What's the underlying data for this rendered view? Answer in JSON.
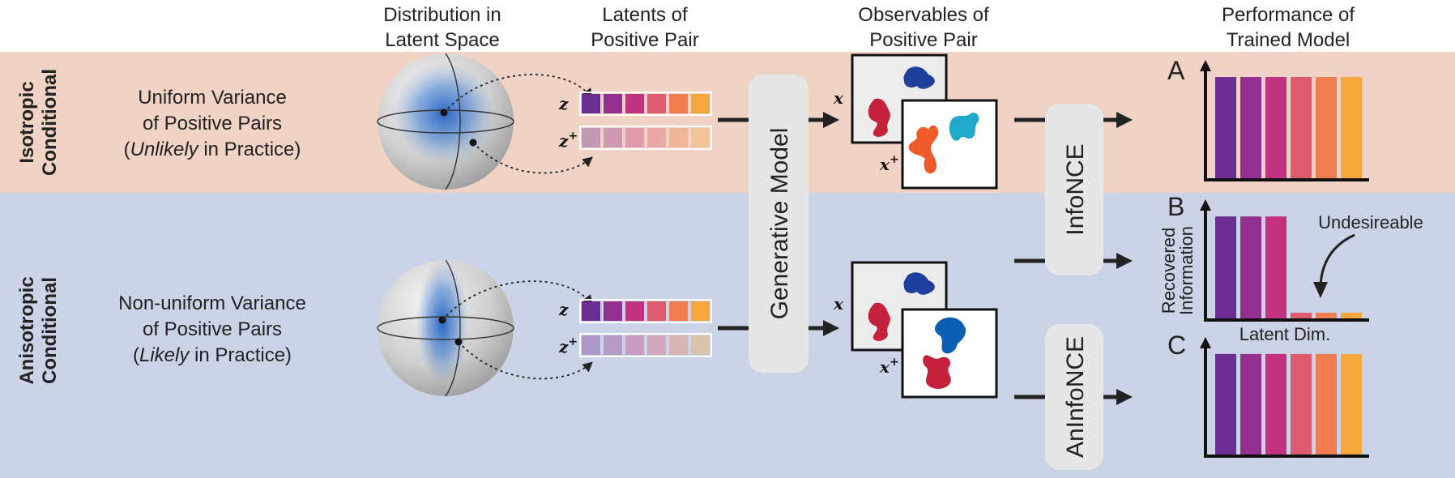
{
  "headers": {
    "distribution": [
      "Distribution in",
      "Latent Space"
    ],
    "latents": [
      "Latents of",
      "Positive Pair"
    ],
    "observables": [
      "Observables of",
      "Positive Pair"
    ],
    "performance": [
      "Performance of",
      "Trained Model"
    ]
  },
  "rows": {
    "isotropic": {
      "label": [
        "Isotropic",
        "Conditional"
      ],
      "desc_line1": "Uniform Variance",
      "desc_line2": "of Positive Pairs",
      "desc_open": "(",
      "desc_em": "Unlikely",
      "desc_rest": " in Practice)"
    },
    "anisotropic": {
      "label": [
        "Anisotropic",
        "Conditional"
      ],
      "desc_line1": "Non-uniform Variance",
      "desc_line2": "of Positive Pairs",
      "desc_open": "(",
      "desc_em": "Likely",
      "desc_rest": " in Practice)"
    }
  },
  "symbols": {
    "z": "z",
    "plus": "+",
    "x": "x"
  },
  "boxes": {
    "generative": "Generative Model",
    "infonce": "InfoNCE",
    "aninfonce": "AnInfoNCE"
  },
  "panels": {
    "a": "A",
    "b": "B",
    "c": "C"
  },
  "axis": {
    "ylabel": [
      "Recovered",
      "Information"
    ],
    "xlabel": "Latent Dim.",
    "annotation": "Undesireable"
  },
  "colors": {
    "isotropic_bg": "#f0d3c4",
    "anisotropic_bg": "#cbd3e6",
    "latent_palette": [
      "#6c2d91",
      "#922f8f",
      "#c2337f",
      "#de5a6e",
      "#f07d51",
      "#f6a73b"
    ],
    "blob_red": "#c4213c",
    "blob_blue": "#1f3f9c",
    "blob_orange": "#ee5a2a",
    "blob_cyan": "#1fa8c8",
    "blob_blue2": "#0b5fb3"
  },
  "chart_data": [
    {
      "panel": "A",
      "type": "bar",
      "values": [
        1,
        1,
        1,
        1,
        1,
        1
      ],
      "ylim": [
        0,
        1.15
      ]
    },
    {
      "panel": "B",
      "type": "bar",
      "values": [
        1,
        1,
        1,
        0.07,
        0.07,
        0.07
      ],
      "ylim": [
        0,
        1.15
      ]
    },
    {
      "panel": "C",
      "type": "bar",
      "values": [
        1,
        1,
        1,
        1,
        1,
        1
      ],
      "ylim": [
        0,
        1.15
      ]
    }
  ]
}
